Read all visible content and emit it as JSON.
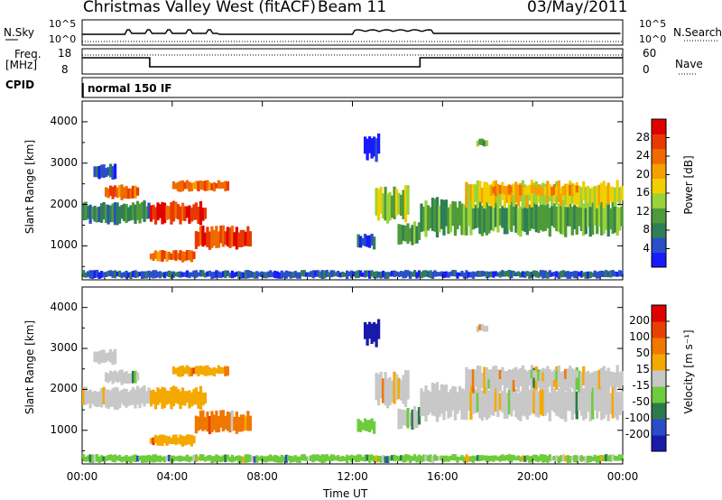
{
  "header": {
    "title": "Christmas Valley West (fitACF)",
    "beam": "Beam 11",
    "date": "03/May/2011"
  },
  "top_panels": {
    "nsky_label": "N.Sky",
    "nsky_ticks": [
      "10^5",
      "10^0"
    ],
    "nsearch_label": "N.Search",
    "nsearch_ticks": [
      "10^5",
      "10^0"
    ],
    "freq_label_1": "Freq.",
    "freq_label_2": "[MHz]",
    "freq_ticks": [
      "18",
      "8"
    ],
    "nave_label": "Nave",
    "nave_ticks": [
      "60",
      "0"
    ],
    "cpid_label": "CPID",
    "cpid_value": "normal 150 IF"
  },
  "chart_data": [
    {
      "type": "heatmap",
      "name": "power",
      "ylabel": "Slant Range [km]",
      "yticks": [
        "4000",
        "3000",
        "2000",
        "1000"
      ],
      "ylim": [
        180,
        4500
      ],
      "xlim": [
        0,
        24
      ],
      "colorbar": {
        "label": "Power [dB]",
        "ticks": [
          "28",
          "24",
          "20",
          "16",
          "12",
          "8",
          "4"
        ],
        "colors": [
          "#1a1aff",
          "#2a4fc8",
          "#2e7f55",
          "#4f9a3a",
          "#9ad23a",
          "#f0d000",
          "#f5a000",
          "#f06a00",
          "#e83a00",
          "#e00000"
        ]
      }
    },
    {
      "type": "heatmap",
      "name": "velocity",
      "ylabel": "Slant Range [km]",
      "yticks": [
        "4000",
        "3000",
        "2000",
        "1000"
      ],
      "ylim": [
        180,
        4500
      ],
      "xlim": [
        0,
        24
      ],
      "xlabel": "Time UT",
      "xticks": [
        "00:00",
        "04:00",
        "08:00",
        "12:00",
        "16:00",
        "20:00",
        "00:00"
      ],
      "colorbar": {
        "label": "Velocity [m s⁻¹]",
        "ticks": [
          "200",
          "100",
          "50",
          "15",
          "-15",
          "-50",
          "-100",
          "-200"
        ],
        "colors": [
          "#1a1aaa",
          "#2b4cc8",
          "#2c7a4a",
          "#6ecc3c",
          "#c8c8c8",
          "#f5a800",
          "#f07800",
          "#e84000",
          "#e00000"
        ]
      }
    }
  ]
}
